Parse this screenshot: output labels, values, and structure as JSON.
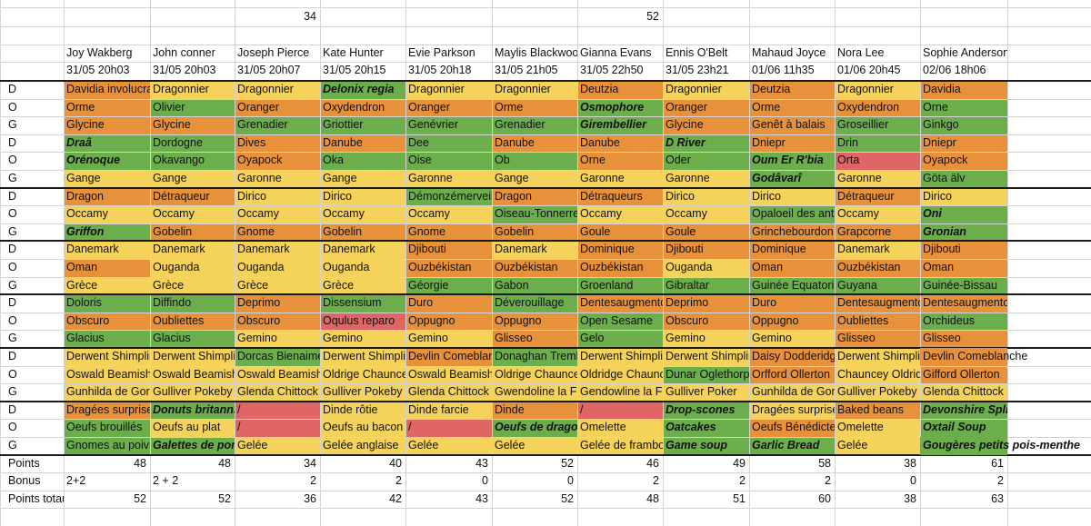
{
  "top_row": [
    "",
    "",
    "34",
    "",
    "",
    "",
    "52",
    "",
    "",
    "",
    ""
  ],
  "top_partial": [
    "",
    "",
    "",
    "",
    "",
    "",
    "",
    "",
    "",
    "",
    ""
  ],
  "colors": {
    "O": "#e8913b",
    "G": "#6cad4c",
    "Y": "#f5d35b",
    "R": "#e06666",
    "N": "#ffffff"
  },
  "players": [
    {
      "name": "Joy Wakberg",
      "date": "31/05 20h03"
    },
    {
      "name": "John conner",
      "date": "31/05 20h03"
    },
    {
      "name": "Joseph Pierce",
      "date": "31/05 20h07"
    },
    {
      "name": "Kate Hunter",
      "date": "31/05 20h15"
    },
    {
      "name": "Evie Parkson",
      "date": "31/05 20h18"
    },
    {
      "name": "Maylis Blackwood",
      "date": "31/05 21h05"
    },
    {
      "name": "Gianna Evans",
      "date": "31/05 22h50"
    },
    {
      "name": "Ennis O'Belt",
      "date": "31/05 23h21"
    },
    {
      "name": "Mahaud Joyce",
      "date": "01/06 11h35"
    },
    {
      "name": "Nora Lee",
      "date": "01/06 20h45"
    },
    {
      "name": "Sophie Anderson",
      "date": "02/06 18h06"
    }
  ],
  "rows": [
    {
      "label": "D",
      "cells": [
        [
          "Davidia involucrata",
          "O"
        ],
        [
          "Dragonnier",
          "Y"
        ],
        [
          "Dragonnier",
          "Y"
        ],
        [
          "Delonix regia",
          "G",
          1
        ],
        [
          "Dragonnier",
          "Y"
        ],
        [
          "Dragonnier",
          "Y"
        ],
        [
          "Deutzia",
          "O"
        ],
        [
          "Dragonnier",
          "Y"
        ],
        [
          "Deutzia",
          "O"
        ],
        [
          "Dragonnier",
          "Y"
        ],
        [
          "Davidia",
          "O"
        ]
      ]
    },
    {
      "label": "O",
      "cells": [
        [
          "Orme",
          "O"
        ],
        [
          "Olivier",
          "G"
        ],
        [
          "Oranger",
          "O"
        ],
        [
          "Oxydendron",
          "O"
        ],
        [
          "Oranger",
          "O"
        ],
        [
          "Orme",
          "O"
        ],
        [
          "Osmophore",
          "G",
          1
        ],
        [
          "Oranger",
          "O"
        ],
        [
          "Orme",
          "O"
        ],
        [
          "Oxydendron",
          "O"
        ],
        [
          "Orne",
          "G"
        ]
      ]
    },
    {
      "label": "G",
      "cells": [
        [
          "Glycine",
          "O"
        ],
        [
          "Glycine",
          "O"
        ],
        [
          "Grenadier",
          "G"
        ],
        [
          "Griottier",
          "G"
        ],
        [
          "Genévrier",
          "G"
        ],
        [
          "Grenadier",
          "G"
        ],
        [
          "Girembellier",
          "G",
          1
        ],
        [
          "Glycine",
          "O"
        ],
        [
          "Genêt à balais",
          "O"
        ],
        [
          "Groseillier",
          "G"
        ],
        [
          "Ginkgo",
          "G"
        ]
      ]
    },
    {
      "label": "D",
      "cells": [
        [
          "Draâ",
          "G",
          1
        ],
        [
          "Dordogne",
          "G"
        ],
        [
          "Dives",
          "O"
        ],
        [
          "Danube",
          "O"
        ],
        [
          "Dee",
          "G"
        ],
        [
          "Danube",
          "O"
        ],
        [
          "Danube",
          "O"
        ],
        [
          "D River",
          "G",
          1
        ],
        [
          "Dniepr",
          "O"
        ],
        [
          "Drin",
          "G"
        ],
        [
          "Dniepr",
          "O"
        ]
      ]
    },
    {
      "label": "O",
      "cells": [
        [
          "Orénoque",
          "G",
          1
        ],
        [
          "Okavango",
          "G"
        ],
        [
          "Oyapock",
          "O"
        ],
        [
          "Oka",
          "G"
        ],
        [
          "Oise",
          "G"
        ],
        [
          "Ob",
          "G"
        ],
        [
          "Orne",
          "O"
        ],
        [
          "Oder",
          "G"
        ],
        [
          "Oum Er R'bia",
          "G",
          1
        ],
        [
          "Orta",
          "R"
        ],
        [
          "Oyapock",
          "O"
        ]
      ]
    },
    {
      "label": "G",
      "cells": [
        [
          "Gange",
          "Y"
        ],
        [
          "Gange",
          "Y"
        ],
        [
          "Garonne",
          "Y"
        ],
        [
          "Gange",
          "Y"
        ],
        [
          "Garonne",
          "Y"
        ],
        [
          "Gange",
          "Y"
        ],
        [
          "Garonne",
          "Y"
        ],
        [
          "Garonne",
          "Y"
        ],
        [
          "Godâvarî",
          "G",
          1
        ],
        [
          "Garonne",
          "Y"
        ],
        [
          "Göta älv",
          "G"
        ]
      ]
    },
    {
      "label": "D",
      "cells": [
        [
          "Dragon",
          "O"
        ],
        [
          "Détraqueur",
          "O"
        ],
        [
          "Dirico",
          "Y"
        ],
        [
          "Dirico",
          "Y"
        ],
        [
          "Démonzémerveille",
          "G"
        ],
        [
          "Dragon",
          "O"
        ],
        [
          "Détraqueurs",
          "O"
        ],
        [
          "Dirico",
          "Y"
        ],
        [
          "Dirico",
          "Y"
        ],
        [
          "Détraqueur",
          "O"
        ],
        [
          "Dirico",
          "Y"
        ]
      ]
    },
    {
      "label": "O",
      "cells": [
        [
          "Occamy",
          "Y"
        ],
        [
          "Occamy",
          "Y"
        ],
        [
          "Occamy",
          "Y"
        ],
        [
          "Occamy",
          "Y"
        ],
        [
          "Occamy",
          "Y"
        ],
        [
          "Oiseau-Tonnerre",
          "G"
        ],
        [
          "Occamy",
          "Y"
        ],
        [
          "Occamy",
          "Y"
        ],
        [
          "Opaloeil des antipodes",
          "G"
        ],
        [
          "Occamy",
          "Y"
        ],
        [
          "Oni",
          "G",
          1
        ]
      ]
    },
    {
      "label": "G",
      "cells": [
        [
          "Griffon",
          "G",
          1
        ],
        [
          "Gobelin",
          "O"
        ],
        [
          "Gnome",
          "O"
        ],
        [
          "Gobelin",
          "O"
        ],
        [
          "Gnome",
          "O"
        ],
        [
          "Gobelin",
          "O"
        ],
        [
          "Goule",
          "O"
        ],
        [
          "Goule",
          "O"
        ],
        [
          "Grinchebourdon",
          "O"
        ],
        [
          "Grapcorne",
          "O"
        ],
        [
          "Gronian",
          "G",
          1
        ]
      ]
    },
    {
      "label": "D",
      "cells": [
        [
          "Danemark",
          "Y"
        ],
        [
          "Danemark",
          "Y"
        ],
        [
          "Danemark",
          "Y"
        ],
        [
          "Danemark",
          "Y"
        ],
        [
          "Djibouti",
          "O"
        ],
        [
          "Danemark",
          "Y"
        ],
        [
          "Dominique",
          "O"
        ],
        [
          "Djibouti",
          "O"
        ],
        [
          "Dominique",
          "O"
        ],
        [
          "Danemark",
          "Y"
        ],
        [
          "Djibouti",
          "O"
        ]
      ]
    },
    {
      "label": "O",
      "cells": [
        [
          "Oman",
          "O"
        ],
        [
          "Ouganda",
          "Y"
        ],
        [
          "Ouganda",
          "Y"
        ],
        [
          "Ouganda",
          "Y"
        ],
        [
          "Ouzbékistan",
          "O"
        ],
        [
          "Ouzbékistan",
          "O"
        ],
        [
          "Ouzbékistan",
          "O"
        ],
        [
          "Ouganda",
          "Y"
        ],
        [
          "Oman",
          "O"
        ],
        [
          "Ouzbékistan",
          "O"
        ],
        [
          "Oman",
          "O"
        ]
      ]
    },
    {
      "label": "G",
      "cells": [
        [
          "Grèce",
          "Y"
        ],
        [
          "Grèce",
          "Y"
        ],
        [
          "Grèce",
          "Y"
        ],
        [
          "Grèce",
          "Y"
        ],
        [
          "Géorgie",
          "G"
        ],
        [
          "Gabon",
          "G"
        ],
        [
          "Groenland",
          "G"
        ],
        [
          "Gibraltar",
          "G"
        ],
        [
          "Guinée Equatoriale",
          "G"
        ],
        [
          "Guyana",
          "G"
        ],
        [
          "Guinée-Bissau",
          "G"
        ]
      ]
    },
    {
      "label": "D",
      "cells": [
        [
          "Doloris",
          "G"
        ],
        [
          "Diffindo",
          "G"
        ],
        [
          "Deprimo",
          "O"
        ],
        [
          "Dissensium",
          "G"
        ],
        [
          "Duro",
          "O"
        ],
        [
          "Déverouillage",
          "G"
        ],
        [
          "Dentesaugmento",
          "O"
        ],
        [
          "Deprimo",
          "O"
        ],
        [
          "Duro",
          "O"
        ],
        [
          "Dentesaugmento",
          "O"
        ],
        [
          "Dentesaugmento",
          "O"
        ]
      ]
    },
    {
      "label": "O",
      "cells": [
        [
          "Obscuro",
          "O"
        ],
        [
          "Oubliettes",
          "O"
        ],
        [
          "Obscuro",
          "O"
        ],
        [
          "Oqulus reparo",
          "R"
        ],
        [
          "Oppugno",
          "O"
        ],
        [
          "Oppugno",
          "O"
        ],
        [
          "Open Sesame",
          "G"
        ],
        [
          "Obscuro",
          "O"
        ],
        [
          "Oppugno",
          "O"
        ],
        [
          "Oubliettes",
          "O"
        ],
        [
          "Orchideus",
          "G"
        ]
      ]
    },
    {
      "label": "G",
      "cells": [
        [
          "Glacius",
          "G"
        ],
        [
          "Glacius",
          "G"
        ],
        [
          "Gemino",
          "Y"
        ],
        [
          "Gemino",
          "Y"
        ],
        [
          "Gemino",
          "Y"
        ],
        [
          "Glisseo",
          "O"
        ],
        [
          "Gelo",
          "G"
        ],
        [
          "Gemino",
          "Y"
        ],
        [
          "Gemino",
          "Y"
        ],
        [
          "Glisseo",
          "O"
        ],
        [
          "Glisseo",
          "O"
        ]
      ]
    },
    {
      "label": "D",
      "cells": [
        [
          "Derwent Shimpling",
          "Y"
        ],
        [
          "Derwent Shimpling",
          "Y"
        ],
        [
          "Dorcas Bienaimé",
          "G"
        ],
        [
          "Derwent Shimpling",
          "Y"
        ],
        [
          "Devlin Comeblanche",
          "O"
        ],
        [
          "Donaghan Tremlett",
          "G"
        ],
        [
          "Derwent Shimpling",
          "Y"
        ],
        [
          "Derwent Shimpling",
          "Y"
        ],
        [
          "Daisy Dodderidge",
          "O"
        ],
        [
          "Derwent Shimpling",
          "Y"
        ],
        [
          "Devlin Comeblanche",
          "O",
          0,
          1
        ]
      ]
    },
    {
      "label": "O",
      "cells": [
        [
          "Oswald Beamish",
          "Y"
        ],
        [
          "Oswald Beamish",
          "Y"
        ],
        [
          "Oswald Beamish",
          "Y"
        ],
        [
          "Oldrige Chauncey",
          "Y"
        ],
        [
          "Oswald Beamish",
          "Y"
        ],
        [
          "Oldrige Chauncey",
          "Y"
        ],
        [
          "Oldridge Chauncey",
          "Y"
        ],
        [
          "Dunar Oglethorpe",
          "G"
        ],
        [
          "Orfford Ollerton",
          "O"
        ],
        [
          "Chauncey Oldridge",
          "Y"
        ],
        [
          "Gifford Ollerton",
          "O"
        ]
      ]
    },
    {
      "label": "G",
      "cells": [
        [
          "Gunhilda de Gorsemoor",
          "Y"
        ],
        [
          "Gulliver Pokeby",
          "Y"
        ],
        [
          "Glenda Chittock",
          "Y"
        ],
        [
          "Gulliver Pokeby",
          "Y"
        ],
        [
          "Glenda Chittock",
          "Y"
        ],
        [
          "Gwendoline la Fantasque",
          "Y"
        ],
        [
          "Gendowline la Fantasque",
          "Y"
        ],
        [
          "Gulliver Poker",
          "Y"
        ],
        [
          "Gunhilda de Gorsemoor",
          "Y"
        ],
        [
          "Gulliver Pokeby",
          "Y"
        ],
        [
          "Glenda Chittock",
          "Y"
        ]
      ]
    },
    {
      "label": "D",
      "cells": [
        [
          "Dragées surprise",
          "O"
        ],
        [
          "Donuts britanniques",
          "G",
          1
        ],
        [
          "/",
          "R"
        ],
        [
          "Dinde rôtie",
          "Y"
        ],
        [
          "Dinde farcie",
          "Y"
        ],
        [
          "Dinde",
          "O"
        ],
        [
          "/",
          "R"
        ],
        [
          "Drop-scones",
          "G",
          1
        ],
        [
          "Dragées surprise",
          "Y"
        ],
        [
          "Baked beans",
          "O"
        ],
        [
          "Devonshire Splits",
          "G",
          1
        ]
      ]
    },
    {
      "label": "O",
      "cells": [
        [
          "Oeufs brouillés",
          "G"
        ],
        [
          "Oeufs au plat",
          "Y"
        ],
        [
          "/",
          "R"
        ],
        [
          "Oeufs au bacon",
          "Y"
        ],
        [
          "/",
          "R"
        ],
        [
          "Oeufs de dragon",
          "G",
          1
        ],
        [
          "Omelette",
          "Y"
        ],
        [
          "Oatcakes",
          "G",
          1
        ],
        [
          "Oeufs Bénédicte",
          "O"
        ],
        [
          "Omelette",
          "Y"
        ],
        [
          "Oxtail Soup",
          "G",
          1
        ]
      ]
    },
    {
      "label": "G",
      "cells": [
        [
          "Gnomes au poivre",
          "G"
        ],
        [
          "Galettes de pommes",
          "G",
          1
        ],
        [
          "Gelée",
          "Y"
        ],
        [
          "Gelée anglaise",
          "Y"
        ],
        [
          "Gelée",
          "Y"
        ],
        [
          "Gelée",
          "Y"
        ],
        [
          "Gelée de framboise",
          "Y"
        ],
        [
          "Game soup",
          "G",
          1
        ],
        [
          "Garlic Bread",
          "G",
          1
        ],
        [
          "Gelée",
          "Y"
        ],
        [
          "Gougères petits pois-menthe",
          "G",
          1,
          1
        ]
      ]
    }
  ],
  "summary": [
    {
      "label": "Points",
      "values": [
        "48",
        "48",
        "34",
        "40",
        "43",
        "52",
        "46",
        "49",
        "58",
        "38",
        "61"
      ]
    },
    {
      "label": "Bonus",
      "values": [
        "2+2",
        "2 + 2",
        "2",
        "2",
        "0",
        "0",
        "2",
        "2",
        "2",
        "0",
        "2"
      ]
    },
    {
      "label": "Points totaux",
      "values": [
        "52",
        "52",
        "36",
        "42",
        "43",
        "52",
        "48",
        "51",
        "60",
        "38",
        "63"
      ]
    }
  ]
}
